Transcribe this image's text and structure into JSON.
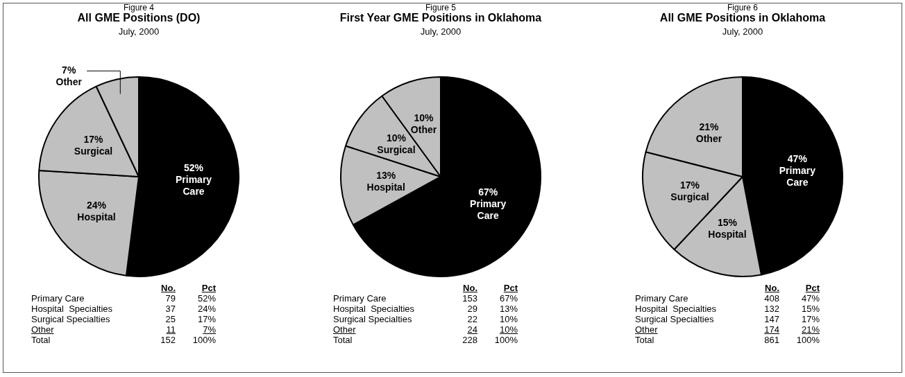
{
  "chart_data": [
    {
      "type": "pie",
      "title": "All GME Positions (DO)",
      "subtitle": "July, 2000",
      "categories": [
        "Primary Care",
        "Hospital",
        "Surgical",
        "Other"
      ],
      "values": [
        52,
        24,
        17,
        7
      ],
      "colors": [
        "#000000",
        "#c0c0c0",
        "#c0c0c0",
        "#c0c0c0"
      ],
      "value_labels": [
        "52%",
        "24%",
        "17%",
        "7%"
      ],
      "legend": false,
      "annotations": [
        "Figure 4",
        "No.",
        "Pct",
        "Primary Care",
        "79",
        "Hospital  Specialties",
        "37",
        "Surgical Specialties",
        "25",
        "Other",
        "11",
        "Total",
        "152",
        "100%"
      ]
    },
    {
      "type": "pie",
      "title": "First Year GME Positions in Oklahoma",
      "subtitle": "July, 2000",
      "categories": [
        "Primary Care",
        "Hospital",
        "Surgical",
        "Other"
      ],
      "values": [
        67,
        13,
        10,
        10
      ],
      "colors": [
        "#000000",
        "#c0c0c0",
        "#c0c0c0",
        "#c0c0c0"
      ],
      "value_labels": [
        "67%",
        "13%",
        "10%",
        "10%"
      ],
      "legend": false,
      "annotations": [
        "Figure 5",
        "No.",
        "Pct",
        "Primary Care",
        "153",
        "Hospital  Specialties",
        "29",
        "Surgical Specialties",
        "22",
        "Other",
        "24",
        "Total",
        "228",
        "100%"
      ]
    },
    {
      "type": "pie",
      "title": "All GME Positions in Oklahoma",
      "subtitle": "July, 2000",
      "categories": [
        "Primary Care",
        "Hospital",
        "Surgical",
        "Other"
      ],
      "values": [
        47,
        15,
        17,
        21
      ],
      "colors": [
        "#000000",
        "#c0c0c0",
        "#c0c0c0",
        "#c0c0c0"
      ],
      "value_labels": [
        "47%",
        "15%",
        "17%",
        "21%"
      ],
      "legend": false,
      "annotations": [
        "Figure 6",
        "No.",
        "Pct",
        "Primary Care",
        "408",
        "Hospital  Specialties",
        "132",
        "Surgical Specialties",
        "147",
        "Other",
        "174",
        "Total",
        "861",
        "100%"
      ]
    }
  ]
}
